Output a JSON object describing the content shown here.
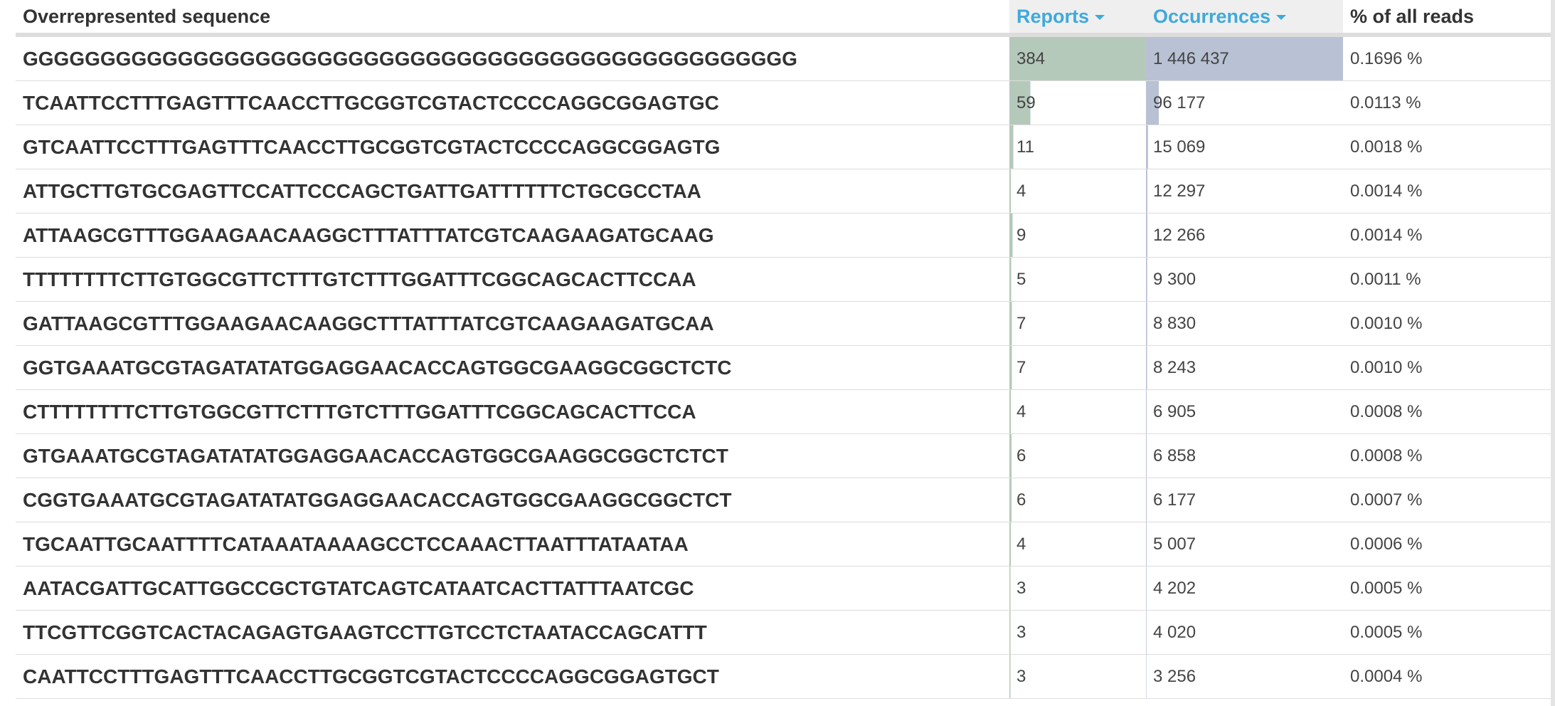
{
  "table": {
    "headers": {
      "sequence": "Overrepresented sequence",
      "reports": "Reports",
      "occurrences": "Occurrences",
      "percent": "% of all reads"
    },
    "colors": {
      "reports_bar": "#b5c9bb",
      "occurrences_bar": "#b8c2d4",
      "sortable_header_text": "#3fa9dc",
      "sortable_header_bg": "#efefef"
    },
    "max_reports": 384,
    "max_occurrences": 1446437,
    "rows": [
      {
        "sequence": "GGGGGGGGGGGGGGGGGGGGGGGGGGGGGGGGGGGGGGGGGGGGGGGGGG",
        "reports": 384,
        "reports_text": "384",
        "occurrences": 1446437,
        "occurrences_text": "1 446 437",
        "percent": "0.1696 %"
      },
      {
        "sequence": "TCAATTCCTTTGAGTTTCAACCTTGCGGTCGTACTCCCCAGGCGGAGTGC",
        "reports": 59,
        "reports_text": "59",
        "occurrences": 96177,
        "occurrences_text": "96 177",
        "percent": "0.0113 %"
      },
      {
        "sequence": "GTCAATTCCTTTGAGTTTCAACCTTGCGGTCGTACTCCCCAGGCGGAGTG",
        "reports": 11,
        "reports_text": "11",
        "occurrences": 15069,
        "occurrences_text": "15 069",
        "percent": "0.0018 %"
      },
      {
        "sequence": "ATTGCTTGTGCGAGTTCCATTCCCAGCTGATTGATTTTTTCTGCGCCTAA",
        "reports": 4,
        "reports_text": "4",
        "occurrences": 12297,
        "occurrences_text": "12 297",
        "percent": "0.0014 %"
      },
      {
        "sequence": "ATTAAGCGTTTGGAAGAACAAGGCTTTATTTATCGTCAAGAAGATGCAAG",
        "reports": 9,
        "reports_text": "9",
        "occurrences": 12266,
        "occurrences_text": "12 266",
        "percent": "0.0014 %"
      },
      {
        "sequence": "TTTTTTTTCTTGTGGCGTTCTTTGTCTTTGGATTTCGGCAGCACTTCCAA",
        "reports": 5,
        "reports_text": "5",
        "occurrences": 9300,
        "occurrences_text": "9 300",
        "percent": "0.0011 %"
      },
      {
        "sequence": "GATTAAGCGTTTGGAAGAACAAGGCTTTATTTATCGTCAAGAAGATGCAA",
        "reports": 7,
        "reports_text": "7",
        "occurrences": 8830,
        "occurrences_text": "8 830",
        "percent": "0.0010 %"
      },
      {
        "sequence": "GGTGAAATGCGTAGATATATGGAGGAACACCAGTGGCGAAGGCGGCTCTC",
        "reports": 7,
        "reports_text": "7",
        "occurrences": 8243,
        "occurrences_text": "8 243",
        "percent": "0.0010 %"
      },
      {
        "sequence": "CTTTTTTTTCTTGTGGCGTTCTTTGTCTTTGGATTTCGGCAGCACTTCCA",
        "reports": 4,
        "reports_text": "4",
        "occurrences": 6905,
        "occurrences_text": "6 905",
        "percent": "0.0008 %"
      },
      {
        "sequence": "GTGAAATGCGTAGATATATGGAGGAACACCAGTGGCGAAGGCGGCTCTCT",
        "reports": 6,
        "reports_text": "6",
        "occurrences": 6858,
        "occurrences_text": "6 858",
        "percent": "0.0008 %"
      },
      {
        "sequence": "CGGTGAAATGCGTAGATATATGGAGGAACACCAGTGGCGAAGGCGGCTCT",
        "reports": 6,
        "reports_text": "6",
        "occurrences": 6177,
        "occurrences_text": "6 177",
        "percent": "0.0007 %"
      },
      {
        "sequence": "TGCAATTGCAATTTTCATAAATAAAAGCCTCCAAACTTAATTTATAATAA",
        "reports": 4,
        "reports_text": "4",
        "occurrences": 5007,
        "occurrences_text": "5 007",
        "percent": "0.0006 %"
      },
      {
        "sequence": "AATACGATTGCATTGGCCGCTGTATCAGTCATAATCACTTATTTAATCGC",
        "reports": 3,
        "reports_text": "3",
        "occurrences": 4202,
        "occurrences_text": "4 202",
        "percent": "0.0005 %"
      },
      {
        "sequence": "TTCGTTCGGTCACTACAGAGTGAAGTCCTTGTCCTCTAATACCAGCATTT",
        "reports": 3,
        "reports_text": "3",
        "occurrences": 4020,
        "occurrences_text": "4 020",
        "percent": "0.0005 %"
      },
      {
        "sequence": "CAATTCCTTTGAGTTTCAACCTTGCGGTCGTACTCCCCAGGCGGAGTGCT",
        "reports": 3,
        "reports_text": "3",
        "occurrences": 3256,
        "occurrences_text": "3 256",
        "percent": "0.0004 %"
      }
    ]
  }
}
